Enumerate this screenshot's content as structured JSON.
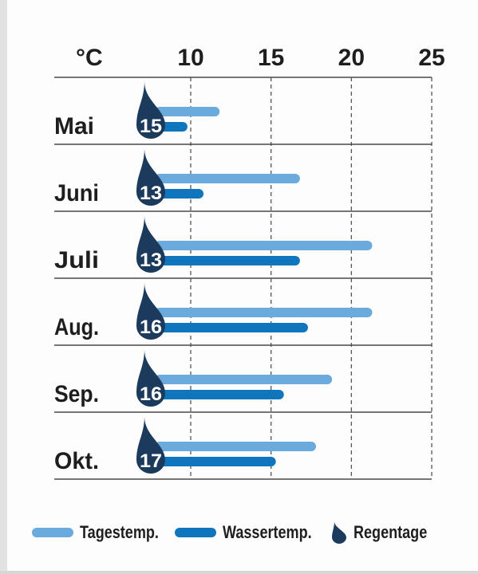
{
  "chart_data": {
    "type": "bar",
    "unit_label": "°C",
    "x_ticks": [
      "10",
      "15",
      "20",
      "25"
    ],
    "xlim": [
      5,
      25
    ],
    "categories": [
      "Mai",
      "Juni",
      "Juli",
      "Aug.",
      "Sep.",
      "Okt."
    ],
    "series": [
      {
        "name": "Tagestemp.",
        "values": [
          11.5,
          16.5,
          21,
          21,
          18.5,
          17.5
        ]
      },
      {
        "name": "Wassertemp.",
        "values": [
          9.5,
          10.5,
          16.5,
          17,
          15.5,
          15
        ]
      },
      {
        "name": "Regentage",
        "values": [
          15,
          13,
          13,
          16,
          16,
          17
        ]
      }
    ],
    "grid": "vertical dashed",
    "legend": "bottom"
  },
  "colors": {
    "tagestemp": "#6aaadc",
    "wassertemp": "#0f75bc",
    "regentage": "#1b3a5c",
    "text": "#1e1e1e",
    "rule": "#4a4a4a",
    "grid": "#555555"
  },
  "legend": {
    "tagestemp": "Tagestemp.",
    "wassertemp": "Wassertemp.",
    "regentage": "Regentage",
    "regentage_icon": "raindrop-icon"
  }
}
